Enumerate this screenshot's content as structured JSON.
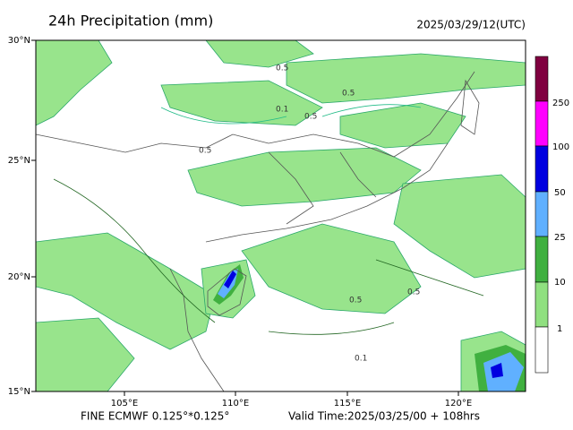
{
  "header": {
    "title": "24h Precipitation (mm)",
    "time": "2025/03/29/12(UTC)"
  },
  "map": {
    "lon_labels": [
      "105°E",
      "110°E",
      "115°E",
      "120°E"
    ],
    "lat_labels": [
      "30°N",
      "25°N",
      "20°N",
      "15°N"
    ],
    "contour_labels": [
      "0.5",
      "0.5",
      "0.1",
      "0.5",
      "0.5",
      "0.5",
      "0.5",
      "0.1"
    ]
  },
  "colorbar": {
    "labels": [
      "250",
      "100",
      "50",
      "25",
      "10",
      "1"
    ]
  },
  "footer": {
    "model": "FINE ECMWF 0.125°*0.125°",
    "valid": "Valid Time:2025/03/25/00 + 108hrs"
  }
}
